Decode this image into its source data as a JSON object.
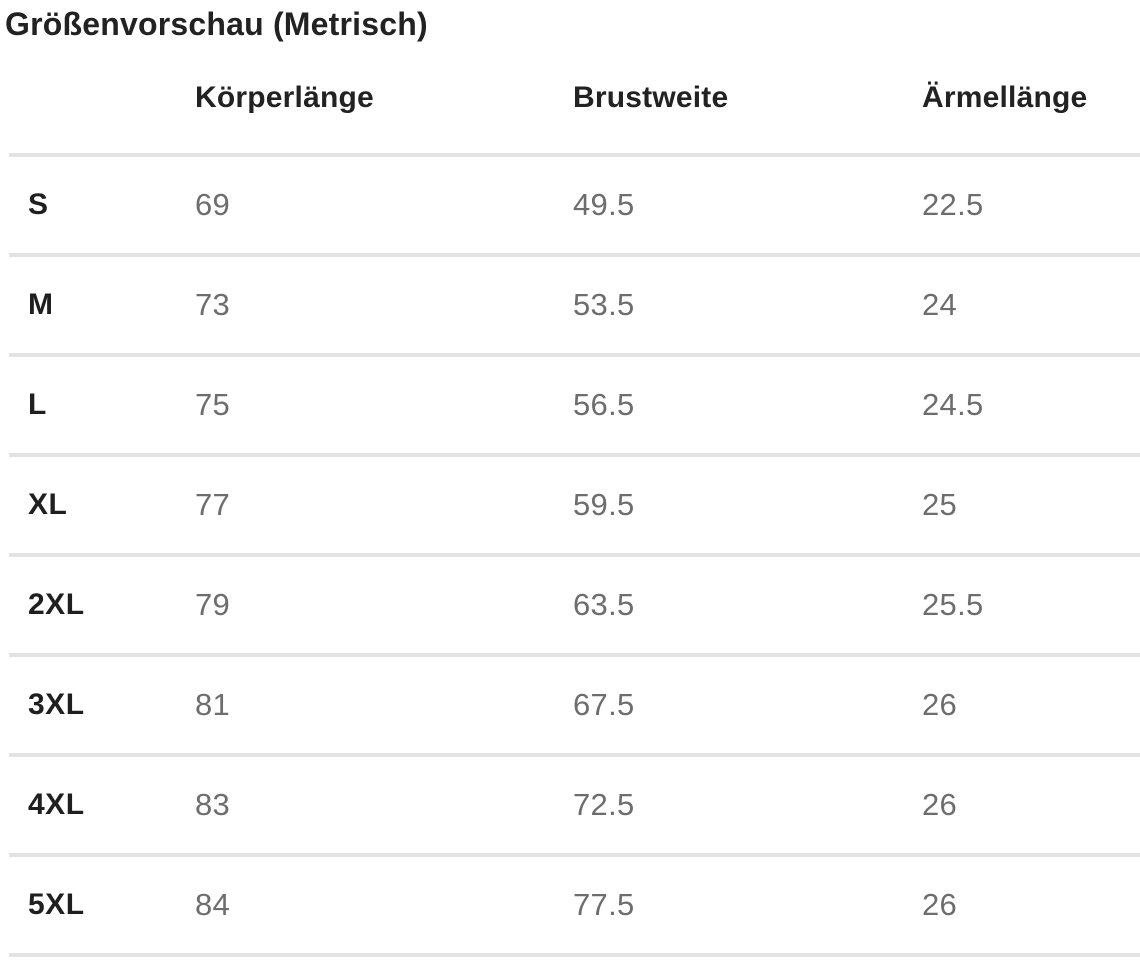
{
  "title": "Größenvorschau (Metrisch)",
  "table": {
    "columns": [
      "Körperlänge",
      "Brustweite",
      "Ärmellänge"
    ],
    "rows": [
      {
        "size": "S",
        "values": [
          "69",
          "49.5",
          "22.5"
        ]
      },
      {
        "size": "M",
        "values": [
          "73",
          "53.5",
          "24"
        ]
      },
      {
        "size": "L",
        "values": [
          "75",
          "56.5",
          "24.5"
        ]
      },
      {
        "size": "XL",
        "values": [
          "77",
          "59.5",
          "25"
        ]
      },
      {
        "size": "2XL",
        "values": [
          "79",
          "63.5",
          "25.5"
        ]
      },
      {
        "size": "3XL",
        "values": [
          "81",
          "67.5",
          "26"
        ]
      },
      {
        "size": "4XL",
        "values": [
          "83",
          "72.5",
          "26"
        ]
      },
      {
        "size": "5XL",
        "values": [
          "84",
          "77.5",
          "26"
        ]
      }
    ]
  },
  "colors": {
    "heading_text": "#222222",
    "value_text": "#6d6d6d",
    "divider": "#e3e3e3",
    "background": "#ffffff"
  }
}
